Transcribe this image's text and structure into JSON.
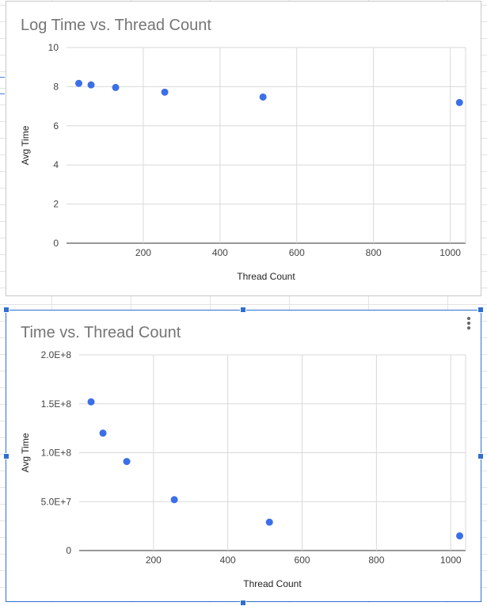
{
  "chart_data": [
    {
      "type": "scatter",
      "title": "Log Time vs. Thread Count",
      "xlabel": "Thread Count",
      "ylabel": "Avg Time",
      "xlim": [
        0,
        1040
      ],
      "ylim": [
        0,
        10
      ],
      "xticks": [
        200,
        400,
        600,
        800,
        1000
      ],
      "yticks": [
        0,
        2,
        4,
        6,
        8,
        10
      ],
      "xtick_labels": [
        "200",
        "400",
        "600",
        "800",
        "1000"
      ],
      "ytick_labels": [
        "0",
        "2",
        "4",
        "6",
        "8",
        "10"
      ],
      "grid": true,
      "color": "#3b6fe8",
      "x": [
        32,
        64,
        128,
        256,
        512,
        1024
      ],
      "y": [
        8.17,
        8.09,
        7.96,
        7.72,
        7.47,
        7.19
      ]
    },
    {
      "type": "scatter",
      "title": "Time vs. Thread Count",
      "xlabel": "Thread Count",
      "ylabel": "Avg Time",
      "xlim": [
        0,
        1040
      ],
      "ylim": [
        0,
        200000000
      ],
      "xticks": [
        200,
        400,
        600,
        800,
        1000
      ],
      "yticks": [
        0,
        50000000,
        100000000,
        150000000,
        200000000
      ],
      "xtick_labels": [
        "200",
        "400",
        "600",
        "800",
        "1000"
      ],
      "ytick_labels": [
        "0",
        "5.0E+7",
        "1.0E+8",
        "1.5E+8",
        "2.0E+8"
      ],
      "grid": true,
      "color": "#3b6fe8",
      "x": [
        32,
        64,
        128,
        256,
        512,
        1024
      ],
      "y": [
        152000000,
        120000000,
        91000000,
        52000000,
        29000000,
        15000000
      ]
    }
  ],
  "colors": {
    "selection": "#2f6fd0",
    "point": "#3b6fe8",
    "gridline": "#d9d9d9",
    "title": "#757575"
  },
  "icons": {
    "chart_menu": "more-vert-icon"
  }
}
